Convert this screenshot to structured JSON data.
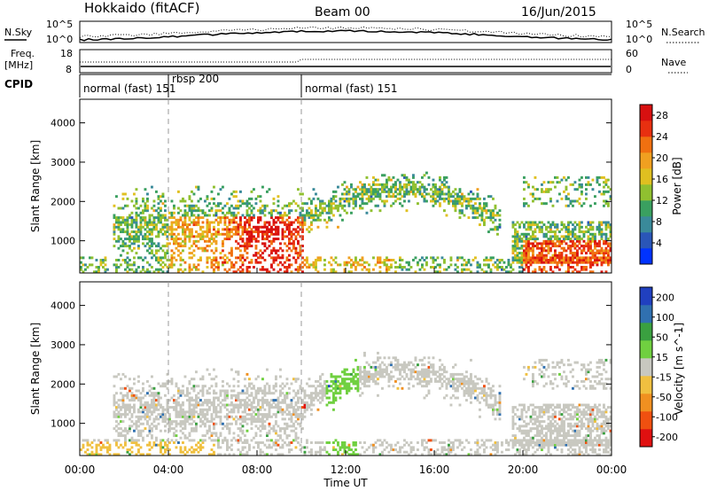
{
  "header": {
    "title": "Hokkaido (fitACF)",
    "beam": "Beam 00",
    "date": "16/Jun/2015"
  },
  "summary": {
    "nsky_label": "N.Sky",
    "nsky_ticks": [
      "10^5",
      "10^0"
    ],
    "nsearch_label": "N.Search",
    "nsearch_ticks": [
      "10^5",
      "10^0"
    ],
    "freq_label": "Freq.",
    "freq_unit": "[MHz]",
    "freq_ticks": [
      "8",
      "18"
    ],
    "nave_label": "Nave",
    "nave_ticks": [
      "60",
      "0"
    ],
    "cpid_label": "CPID",
    "cpid_segments": [
      {
        "label": "normal (fast) 151",
        "start_hour": 0,
        "end_hour": 4.0
      },
      {
        "label": "rbsp 200",
        "start_hour": 4.0,
        "end_hour": 10.0
      },
      {
        "label": "normal (fast) 151",
        "start_hour": 10.0,
        "end_hour": 24.0
      }
    ]
  },
  "chart_data": [
    {
      "type": "heatmap",
      "name": "power",
      "ylabel": "Slant Range [km]",
      "y_ticks": [
        1000,
        2000,
        3000,
        4000
      ],
      "ylim": [
        180,
        4600
      ],
      "xlim": [
        0,
        24
      ],
      "colorbar": {
        "label": "Power [dB]",
        "ticks": [
          "4",
          "8",
          "12",
          "16",
          "20",
          "24",
          "28"
        ],
        "range": [
          0,
          30
        ],
        "colors": [
          "#0033ff",
          "#2a56b8",
          "#3a8a9a",
          "#3aa060",
          "#90c030",
          "#e0c020",
          "#f0a020",
          "#f07010",
          "#e83010",
          "#d81010"
        ]
      }
    },
    {
      "type": "heatmap",
      "name": "velocity",
      "ylabel": "Slant Range [km]",
      "y_ticks": [
        1000,
        2000,
        3000,
        4000
      ],
      "ylim": [
        180,
        4600
      ],
      "xlim": [
        0,
        24
      ],
      "colorbar": {
        "label": "Velocity [m s^-1]",
        "ticks": [
          "200",
          "100",
          "50",
          "15",
          "-15",
          "-50",
          "-100",
          "-200"
        ],
        "range": [
          -250,
          250
        ],
        "colors": [
          "#2040c0",
          "#3070b0",
          "#3aa040",
          "#70d040",
          "#c8c8c0",
          "#f0c040",
          "#f09020",
          "#f05010",
          "#e01010"
        ]
      }
    }
  ],
  "x_axis": {
    "label": "Time UT",
    "ticks": [
      "00:00",
      "04:00",
      "08:00",
      "12:00",
      "16:00",
      "20:00",
      "00:00"
    ]
  }
}
